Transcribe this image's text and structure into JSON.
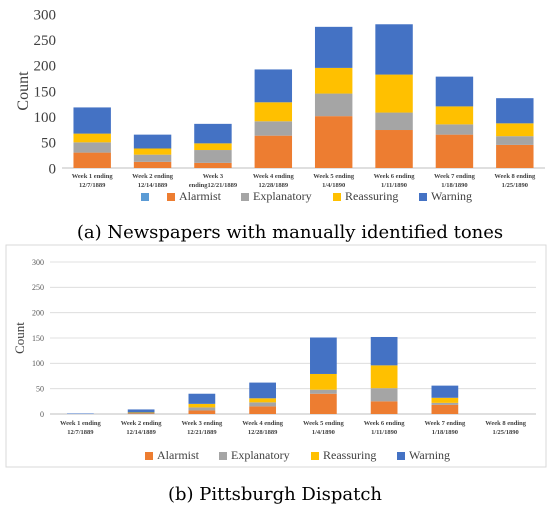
{
  "colors": {
    "Alarmist": "#ed7d31",
    "Explanatory": "#a5a5a5",
    "Reassuring": "#ffc000",
    "Warning": "#4472c4",
    "blank_legend": "#5b9bd5",
    "grid": "#d9d9d9",
    "axis_text": "#595959"
  },
  "chart_data": [
    {
      "type": "bar",
      "stacked": true,
      "caption": "(a) Newspapers with manually identified tones",
      "ylabel": "Count",
      "ylim": [
        0,
        300
      ],
      "yticks": [
        0,
        50,
        100,
        150,
        200,
        250,
        300
      ],
      "grid": false,
      "legend_position": "bottom",
      "legend": [
        "",
        "Alarmist",
        "Explanatory",
        "Reassuring",
        "Warning"
      ],
      "categories": [
        {
          "line1": "Week 1 ending",
          "line2": "12/7/1889"
        },
        {
          "line1": "Week 2 ending",
          "line2": "12/14/1889"
        },
        {
          "line1": "Week 3",
          "line2": "ending12/21/1889"
        },
        {
          "line1": "Week 4 ending",
          "line2": "12/28/1889"
        },
        {
          "line1": "Week 5 ending",
          "line2": "1/4/1890"
        },
        {
          "line1": "Week 6 ending",
          "line2": "1/11/1890"
        },
        {
          "line1": "Week 7 ending",
          "line2": "1/18/1890"
        },
        {
          "line1": "Week 8 ending",
          "line2": "1/25/1890"
        }
      ],
      "series": [
        {
          "name": "Alarmist",
          "values": [
            30,
            12,
            10,
            63,
            101,
            74,
            65,
            45
          ]
        },
        {
          "name": "Explanatory",
          "values": [
            20,
            14,
            25,
            28,
            44,
            34,
            20,
            17
          ]
        },
        {
          "name": "Reassuring",
          "values": [
            17,
            12,
            13,
            37,
            50,
            74,
            35,
            25
          ]
        },
        {
          "name": "Warning",
          "values": [
            51,
            27,
            38,
            64,
            80,
            98,
            58,
            49
          ]
        }
      ]
    },
    {
      "type": "bar",
      "stacked": true,
      "caption": "(b) Pittsburgh Dispatch",
      "ylabel": "Count",
      "ylim": [
        0,
        300
      ],
      "yticks": [
        0,
        50,
        100,
        150,
        200,
        250,
        300
      ],
      "grid": true,
      "legend_position": "bottom",
      "legend": [
        "Alarmist",
        "Explanatory",
        "Reassuring",
        "Warning"
      ],
      "categories": [
        {
          "line1": "Week 1 ending",
          "line2": "12/7/1889"
        },
        {
          "line1": "Week 2 ending",
          "line2": "12/14/1889"
        },
        {
          "line1": "Week 3 ending",
          "line2": "12/21/1889"
        },
        {
          "line1": "Week 4 ending",
          "line2": "12/28/1889"
        },
        {
          "line1": "Week 5 ending",
          "line2": "1/4/1890"
        },
        {
          "line1": "Week 6 ending",
          "line2": "1/11/1890"
        },
        {
          "line1": "Week 7 ending",
          "line2": "1/18/1890"
        },
        {
          "line1": "Week 8 ending",
          "line2": "1/25/1890"
        }
      ],
      "series": [
        {
          "name": "Alarmist",
          "values": [
            0,
            1,
            7,
            15,
            40,
            25,
            18,
            0
          ]
        },
        {
          "name": "Explanatory",
          "values": [
            0,
            1,
            6,
            8,
            8,
            26,
            4,
            0
          ]
        },
        {
          "name": "Reassuring",
          "values": [
            0,
            1,
            7,
            8,
            31,
            45,
            10,
            0
          ]
        },
        {
          "name": "Warning",
          "values": [
            1,
            6,
            20,
            31,
            72,
            56,
            24,
            0
          ]
        }
      ]
    }
  ]
}
